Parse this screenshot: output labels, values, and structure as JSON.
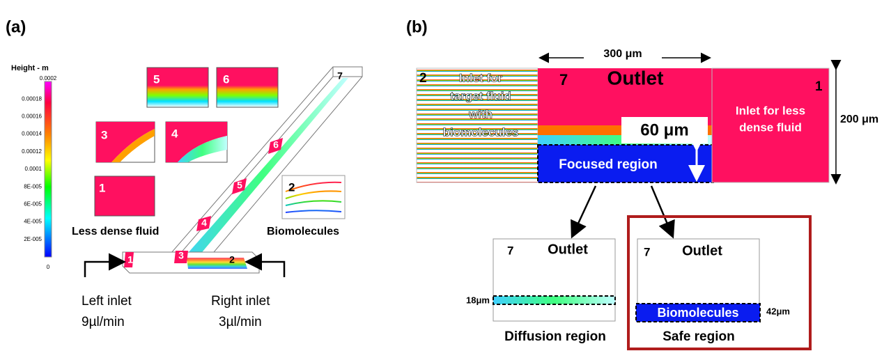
{
  "panel_a": {
    "label": "(a)",
    "colorbar": {
      "title": "Height - m",
      "ticks": [
        "0.0002",
        "0.00018",
        "0.00016",
        "0.00014",
        "0.00012",
        "0.0001",
        "8E-005",
        "6E-005",
        "4E-005",
        "2E-005",
        "0"
      ]
    },
    "insets": [
      "5",
      "6",
      "3",
      "4",
      "1",
      "2"
    ],
    "channel_labels": [
      "1",
      "2",
      "3",
      "4",
      "5",
      "6",
      "7"
    ],
    "less_dense": "Less dense fluid",
    "biomolecules": "Biomolecules",
    "left_inlet": {
      "name": "Left inlet",
      "rate": "9µl/min"
    },
    "right_inlet": {
      "name": "Right inlet",
      "rate": "3µl/min"
    }
  },
  "panel_b": {
    "label": "(b)",
    "width": "300 μm",
    "height": "200 μm",
    "left": {
      "number": "2",
      "lines": [
        "Inlet for",
        "target fluid",
        "with",
        "biomolecules"
      ]
    },
    "middle": {
      "number": "7",
      "title": "Outlet",
      "gap": "60 μm",
      "focused": "Focused region"
    },
    "right": {
      "number": "1",
      "lines": [
        "Inlet for less",
        "dense fluid"
      ]
    },
    "diffusion": {
      "number": "7",
      "title": "Outlet",
      "thickness": "18μm",
      "caption": "Diffusion region"
    },
    "safe": {
      "number": "7",
      "title": "Outlet",
      "band": "Biomolecules",
      "thickness": "42μm",
      "caption": "Safe region"
    }
  }
}
